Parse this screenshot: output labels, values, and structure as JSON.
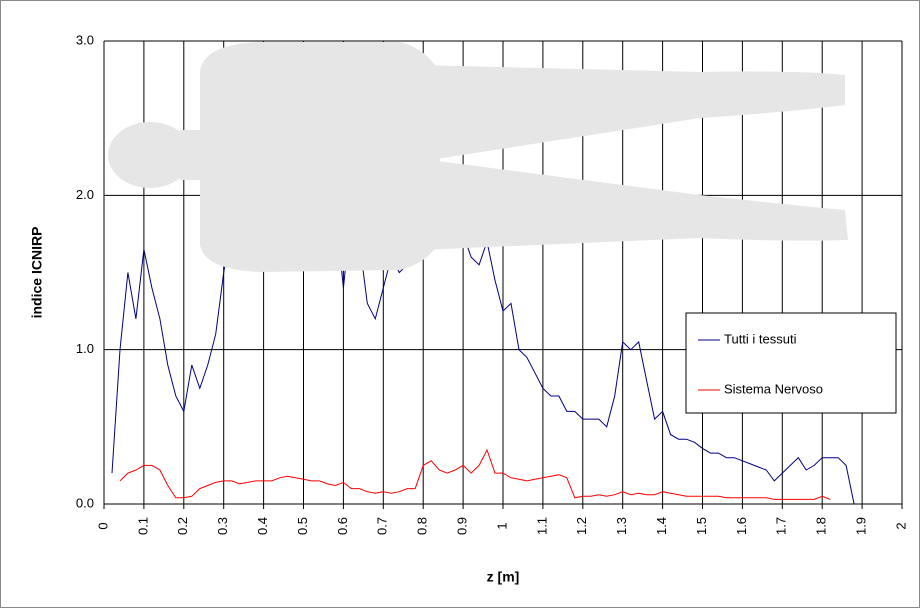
{
  "chart_data": {
    "type": "line",
    "y_label": "indice ICNIRP",
    "x_label": "z [m]",
    "xlim": [
      0,
      2
    ],
    "ylim": [
      0,
      3
    ],
    "xticks": [
      0,
      0.1,
      0.2,
      0.3,
      0.4,
      0.5,
      0.6,
      0.7,
      0.8,
      0.9,
      1,
      1.1,
      1.2,
      1.3,
      1.4,
      1.5,
      1.6,
      1.7,
      1.8,
      1.9,
      2
    ],
    "yticks": [
      {
        "value": 0,
        "label": "0.0"
      },
      {
        "value": 1,
        "label": "1.0"
      },
      {
        "value": 2,
        "label": "2.0"
      },
      {
        "value": 3,
        "label": "3.0"
      }
    ],
    "grid": true,
    "legend": "right",
    "x": [
      0.02,
      0.04,
      0.06,
      0.08,
      0.1,
      0.12,
      0.14,
      0.16,
      0.18,
      0.2,
      0.22,
      0.24,
      0.26,
      0.28,
      0.3,
      0.32,
      0.34,
      0.36,
      0.38,
      0.4,
      0.42,
      0.44,
      0.46,
      0.48,
      0.5,
      0.52,
      0.54,
      0.56,
      0.58,
      0.6,
      0.62,
      0.64,
      0.66,
      0.68,
      0.7,
      0.72,
      0.74,
      0.76,
      0.78,
      0.8,
      0.82,
      0.84,
      0.86,
      0.88,
      0.9,
      0.92,
      0.94,
      0.96,
      0.98,
      1.0,
      1.02,
      1.04,
      1.06,
      1.08,
      1.1,
      1.12,
      1.14,
      1.16,
      1.18,
      1.2,
      1.22,
      1.24,
      1.26,
      1.28,
      1.3,
      1.32,
      1.34,
      1.36,
      1.38,
      1.4,
      1.42,
      1.44,
      1.46,
      1.48,
      1.5,
      1.52,
      1.54,
      1.56,
      1.58,
      1.6,
      1.62,
      1.64,
      1.66,
      1.68,
      1.7,
      1.72,
      1.74,
      1.76,
      1.78,
      1.8,
      1.82,
      1.84,
      1.86,
      1.88
    ],
    "series": [
      {
        "name": "Tutti i tessuti",
        "color": "#000080",
        "values": [
          0.2,
          1.0,
          1.5,
          1.2,
          1.65,
          1.4,
          1.2,
          0.9,
          0.7,
          0.6,
          0.9,
          0.75,
          0.9,
          1.1,
          1.5,
          1.8,
          2.0,
          2.2,
          2.3,
          2.4,
          2.4,
          2.5,
          2.5,
          2.6,
          2.7,
          2.6,
          2.5,
          2.3,
          1.9,
          1.4,
          1.9,
          1.7,
          1.3,
          1.2,
          1.4,
          1.6,
          1.5,
          1.55,
          1.6,
          1.75,
          1.7,
          1.8,
          1.9,
          1.7,
          1.75,
          1.6,
          1.55,
          1.7,
          1.45,
          1.25,
          1.3,
          1.0,
          0.95,
          0.85,
          0.75,
          0.7,
          0.7,
          0.6,
          0.6,
          0.55,
          0.55,
          0.55,
          0.5,
          0.7,
          1.05,
          1.0,
          1.05,
          0.8,
          0.55,
          0.6,
          0.45,
          0.42,
          0.42,
          0.4,
          0.36,
          0.33,
          0.33,
          0.3,
          0.3,
          0.28,
          0.26,
          0.24,
          0.22,
          0.15,
          0.2,
          0.25,
          0.3,
          0.22,
          0.25,
          0.3,
          0.3,
          0.3,
          0.25,
          0
        ]
      },
      {
        "name": "Sistema Nervoso",
        "color": "#ff0000",
        "values": [
          null,
          0.15,
          0.2,
          0.22,
          0.25,
          0.25,
          0.22,
          0.12,
          0.04,
          0.04,
          0.05,
          0.1,
          0.12,
          0.14,
          0.15,
          0.15,
          0.13,
          0.14,
          0.15,
          0.15,
          0.15,
          0.17,
          0.18,
          0.17,
          0.16,
          0.15,
          0.15,
          0.13,
          0.12,
          0.14,
          0.1,
          0.1,
          0.08,
          0.07,
          0.08,
          0.07,
          0.08,
          0.1,
          0.1,
          0.25,
          0.28,
          0.22,
          0.2,
          0.22,
          0.25,
          0.2,
          0.25,
          0.35,
          0.2,
          0.2,
          0.17,
          0.16,
          0.15,
          0.16,
          0.17,
          0.18,
          0.19,
          0.17,
          0.04,
          0.05,
          0.05,
          0.06,
          0.05,
          0.06,
          0.08,
          0.06,
          0.07,
          0.06,
          0.06,
          0.08,
          0.07,
          0.06,
          0.05,
          0.05,
          0.05,
          0.05,
          0.05,
          0.04,
          0.04,
          0.04,
          0.04,
          0.04,
          0.04,
          0.03,
          0.03,
          0.03,
          0.03,
          0.03,
          0.03,
          0.05,
          0.03,
          null,
          null,
          null
        ]
      }
    ]
  }
}
